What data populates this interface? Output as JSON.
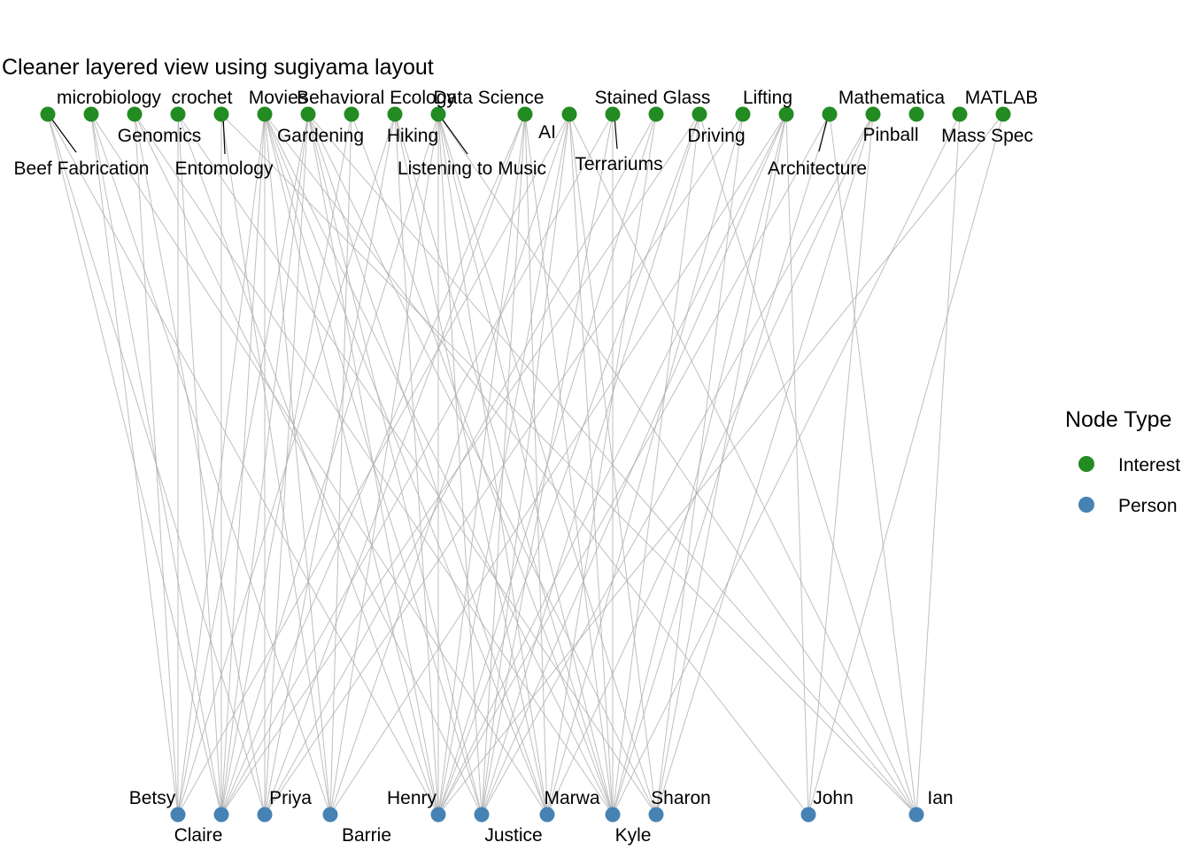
{
  "title": "Cleaner layered view using sugiyama layout",
  "legend": {
    "title": "Node Type",
    "items": [
      {
        "label": "Interest",
        "color": "#228B22"
      },
      {
        "label": "Person",
        "color": "#4682B4"
      }
    ]
  },
  "colors": {
    "interest": "#228B22",
    "person": "#4682B4",
    "edge": "#A9A9A9"
  },
  "interests": [
    "Beef Fabrication",
    "microbiology",
    "Genomics",
    "crochet",
    "Entomology",
    "Movies",
    "Gardening",
    "Behavioral Ecology",
    "Hiking",
    "Listening to Music",
    "Data Science",
    "AI",
    "Terrariums",
    "Stained Glass",
    "Driving",
    "Lifting",
    "Architecture",
    "Mathematica",
    "Pinball",
    "Mass Spec",
    "MATLAB"
  ],
  "people": [
    "Betsy",
    "Claire",
    "Priya",
    "Barrie",
    "Henry",
    "Justice",
    "Marwa",
    "Kyle",
    "Sharon",
    "John",
    "Ian"
  ],
  "edges": [
    [
      "Beef Fabrication",
      "Claire"
    ],
    [
      "Beef Fabrication",
      "Priya"
    ],
    [
      "Beef Fabrication",
      "Henry"
    ],
    [
      "microbiology",
      "Betsy"
    ],
    [
      "microbiology",
      "Claire"
    ],
    [
      "microbiology",
      "Barrie"
    ],
    [
      "microbiology",
      "Marwa"
    ],
    [
      "Genomics",
      "Betsy"
    ],
    [
      "Genomics",
      "Priya"
    ],
    [
      "Genomics",
      "Justice"
    ],
    [
      "Genomics",
      "Kyle"
    ],
    [
      "crochet",
      "Betsy"
    ],
    [
      "crochet",
      "Claire"
    ],
    [
      "crochet",
      "Henry"
    ],
    [
      "crochet",
      "Sharon"
    ],
    [
      "Entomology",
      "Claire"
    ],
    [
      "Entomology",
      "Barrie"
    ],
    [
      "Entomology",
      "Ian"
    ],
    [
      "Movies",
      "Betsy"
    ],
    [
      "Movies",
      "Claire"
    ],
    [
      "Movies",
      "Priya"
    ],
    [
      "Movies",
      "Barrie"
    ],
    [
      "Movies",
      "Henry"
    ],
    [
      "Movies",
      "Justice"
    ],
    [
      "Movies",
      "Marwa"
    ],
    [
      "Movies",
      "Kyle"
    ],
    [
      "Movies",
      "John"
    ],
    [
      "Gardening",
      "Betsy"
    ],
    [
      "Gardening",
      "Claire"
    ],
    [
      "Gardening",
      "Priya"
    ],
    [
      "Gardening",
      "Henry"
    ],
    [
      "Gardening",
      "Justice"
    ],
    [
      "Gardening",
      "Marwa"
    ],
    [
      "Gardening",
      "Sharon"
    ],
    [
      "Gardening",
      "Ian"
    ],
    [
      "Behavioral Ecology",
      "Claire"
    ],
    [
      "Behavioral Ecology",
      "Barrie"
    ],
    [
      "Behavioral Ecology",
      "Kyle"
    ],
    [
      "Hiking",
      "Betsy"
    ],
    [
      "Hiking",
      "Priya"
    ],
    [
      "Hiking",
      "Henry"
    ],
    [
      "Hiking",
      "Marwa"
    ],
    [
      "Hiking",
      "Kyle"
    ],
    [
      "Listening to Music",
      "Claire"
    ],
    [
      "Listening to Music",
      "Barrie"
    ],
    [
      "Listening to Music",
      "Henry"
    ],
    [
      "Listening to Music",
      "Justice"
    ],
    [
      "Listening to Music",
      "Marwa"
    ],
    [
      "Listening to Music",
      "Kyle"
    ],
    [
      "Listening to Music",
      "Sharon"
    ],
    [
      "Listening to Music",
      "Ian"
    ],
    [
      "Data Science",
      "Claire"
    ],
    [
      "Data Science",
      "Priya"
    ],
    [
      "Data Science",
      "Henry"
    ],
    [
      "Data Science",
      "Justice"
    ],
    [
      "Data Science",
      "Marwa"
    ],
    [
      "Data Science",
      "Kyle"
    ],
    [
      "AI",
      "Betsy"
    ],
    [
      "AI",
      "Barrie"
    ],
    [
      "AI",
      "Henry"
    ],
    [
      "AI",
      "Justice"
    ],
    [
      "AI",
      "Kyle"
    ],
    [
      "AI",
      "Sharon"
    ],
    [
      "AI",
      "Ian"
    ],
    [
      "Terrariums",
      "Claire"
    ],
    [
      "Terrariums",
      "Justice"
    ],
    [
      "Terrariums",
      "Kyle"
    ],
    [
      "Stained Glass",
      "Priya"
    ],
    [
      "Stained Glass",
      "Henry"
    ],
    [
      "Stained Glass",
      "Marwa"
    ],
    [
      "Driving",
      "Claire"
    ],
    [
      "Driving",
      "Henry"
    ],
    [
      "Driving",
      "Justice"
    ],
    [
      "Driving",
      "Kyle"
    ],
    [
      "Driving",
      "Ian"
    ],
    [
      "Lifting",
      "Priya"
    ],
    [
      "Lifting",
      "Marwa"
    ],
    [
      "Lifting",
      "Sharon"
    ],
    [
      "Architecture",
      "Barrie"
    ],
    [
      "Architecture",
      "Henry"
    ],
    [
      "Architecture",
      "Justice"
    ],
    [
      "Architecture",
      "Kyle"
    ],
    [
      "Architecture",
      "Sharon"
    ],
    [
      "Architecture",
      "John"
    ],
    [
      "Mathematica",
      "Henry"
    ],
    [
      "Mathematica",
      "Kyle"
    ],
    [
      "Mathematica",
      "Ian"
    ],
    [
      "Pinball",
      "Justice"
    ],
    [
      "Pinball",
      "Marwa"
    ],
    [
      "Pinball",
      "Sharon"
    ],
    [
      "Pinball",
      "John"
    ],
    [
      "Mass Spec",
      "Kyle"
    ],
    [
      "Mass Spec",
      "Ian"
    ],
    [
      "MATLAB",
      "Henry"
    ],
    [
      "MATLAB",
      "John"
    ]
  ]
}
